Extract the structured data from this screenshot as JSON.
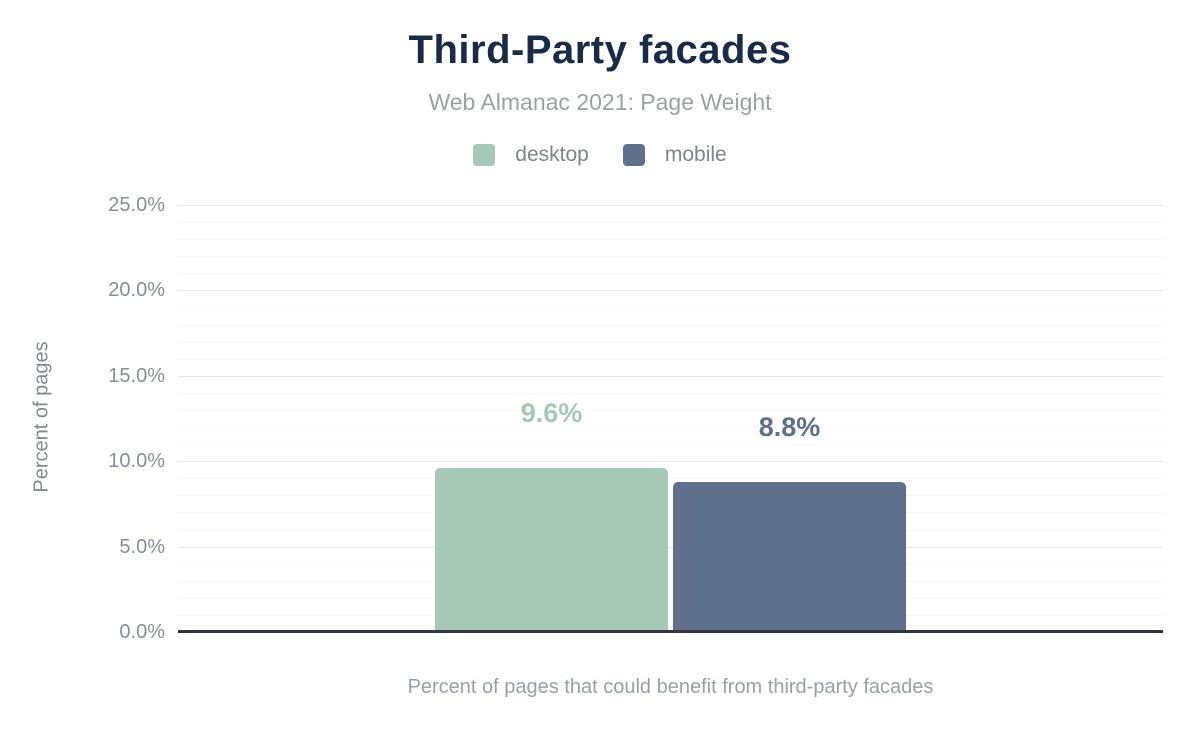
{
  "header": {
    "title": "Third-Party facades",
    "subtitle": "Web Almanac 2021: Page Weight"
  },
  "legend": [
    {
      "label": "desktop",
      "color": "#a6c9b7"
    },
    {
      "label": "mobile",
      "color": "#5e708c"
    }
  ],
  "chart_data": {
    "type": "bar",
    "title": "Third-Party facades",
    "subtitle": "Web Almanac 2021: Page Weight",
    "categories": [
      "desktop",
      "mobile"
    ],
    "series": [
      {
        "name": "desktop",
        "value": 9.6,
        "label": "9.6%",
        "color": "#a6c9b7"
      },
      {
        "name": "mobile",
        "value": 8.8,
        "label": "8.8%",
        "color": "#5e708c"
      }
    ],
    "ylabel": "Percent of pages",
    "xlabel": "Percent of pages that could benefit from third-party facades",
    "ylim": [
      0,
      25
    ],
    "yticks": [
      {
        "value": 0,
        "label": "0.0%"
      },
      {
        "value": 5,
        "label": "5.0%"
      },
      {
        "value": 10,
        "label": "10.0%"
      },
      {
        "value": 15,
        "label": "15.0%"
      },
      {
        "value": 20,
        "label": "20.0%"
      },
      {
        "value": 25,
        "label": "25.0%"
      }
    ],
    "minor_gridline_step": 1,
    "grid": true,
    "legend_position": "top",
    "colors": {
      "title": "#1a2b49",
      "axis_text": "#878e94",
      "baseline": "#323539"
    }
  }
}
